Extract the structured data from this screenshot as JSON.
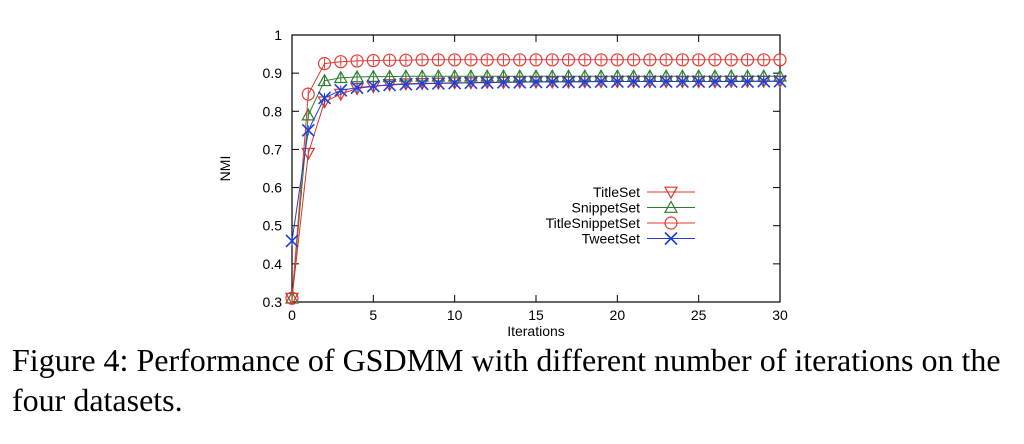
{
  "caption": "Figure 4: Performance of GSDMM with different number of iterations on the four datasets.",
  "chart_data": {
    "type": "line",
    "title": "",
    "xlabel": "Iterations",
    "ylabel": "NMI",
    "xlim": [
      0,
      30
    ],
    "ylim": [
      0.3,
      1.0
    ],
    "xticks": [
      0,
      5,
      10,
      15,
      20,
      25,
      30
    ],
    "yticks": [
      0.3,
      0.4,
      0.5,
      0.6,
      0.7,
      0.8,
      0.9,
      1
    ],
    "grid": false,
    "legend_position": "right-middle",
    "x": [
      0,
      1,
      2,
      3,
      4,
      5,
      6,
      7,
      8,
      9,
      10,
      11,
      12,
      13,
      14,
      15,
      16,
      17,
      18,
      19,
      20,
      21,
      22,
      23,
      24,
      25,
      26,
      27,
      28,
      29,
      30
    ],
    "series": [
      {
        "name": "TitleSet",
        "color": "#d9352b",
        "marker": "triangle-down",
        "values": [
          0.31,
          0.69,
          0.825,
          0.845,
          0.86,
          0.865,
          0.87,
          0.872,
          0.873,
          0.874,
          0.875,
          0.875,
          0.876,
          0.876,
          0.877,
          0.877,
          0.877,
          0.877,
          0.878,
          0.878,
          0.878,
          0.878,
          0.878,
          0.878,
          0.878,
          0.878,
          0.878,
          0.879,
          0.879,
          0.879,
          0.879
        ]
      },
      {
        "name": "SnippetSet",
        "color": "#2e7d32",
        "marker": "triangle-up",
        "values": [
          0.31,
          0.79,
          0.88,
          0.888,
          0.89,
          0.891,
          0.891,
          0.892,
          0.892,
          0.892,
          0.892,
          0.892,
          0.892,
          0.892,
          0.892,
          0.892,
          0.892,
          0.892,
          0.892,
          0.892,
          0.892,
          0.892,
          0.892,
          0.892,
          0.892,
          0.892,
          0.892,
          0.892,
          0.892,
          0.892,
          0.892
        ]
      },
      {
        "name": "TitleSnippetSet",
        "color": "#e53935",
        "marker": "circle",
        "values": [
          0.31,
          0.845,
          0.925,
          0.93,
          0.932,
          0.933,
          0.934,
          0.934,
          0.935,
          0.935,
          0.935,
          0.935,
          0.935,
          0.935,
          0.935,
          0.935,
          0.935,
          0.935,
          0.935,
          0.935,
          0.935,
          0.935,
          0.935,
          0.935,
          0.935,
          0.935,
          0.935,
          0.935,
          0.935,
          0.935,
          0.935
        ]
      },
      {
        "name": "TweetSet",
        "color": "#1e3fd8",
        "marker": "x",
        "values": [
          0.46,
          0.75,
          0.835,
          0.855,
          0.862,
          0.866,
          0.869,
          0.871,
          0.872,
          0.873,
          0.874,
          0.875,
          0.875,
          0.876,
          0.876,
          0.877,
          0.877,
          0.877,
          0.877,
          0.878,
          0.878,
          0.878,
          0.878,
          0.878,
          0.878,
          0.878,
          0.878,
          0.878,
          0.878,
          0.879,
          0.879
        ]
      }
    ]
  }
}
